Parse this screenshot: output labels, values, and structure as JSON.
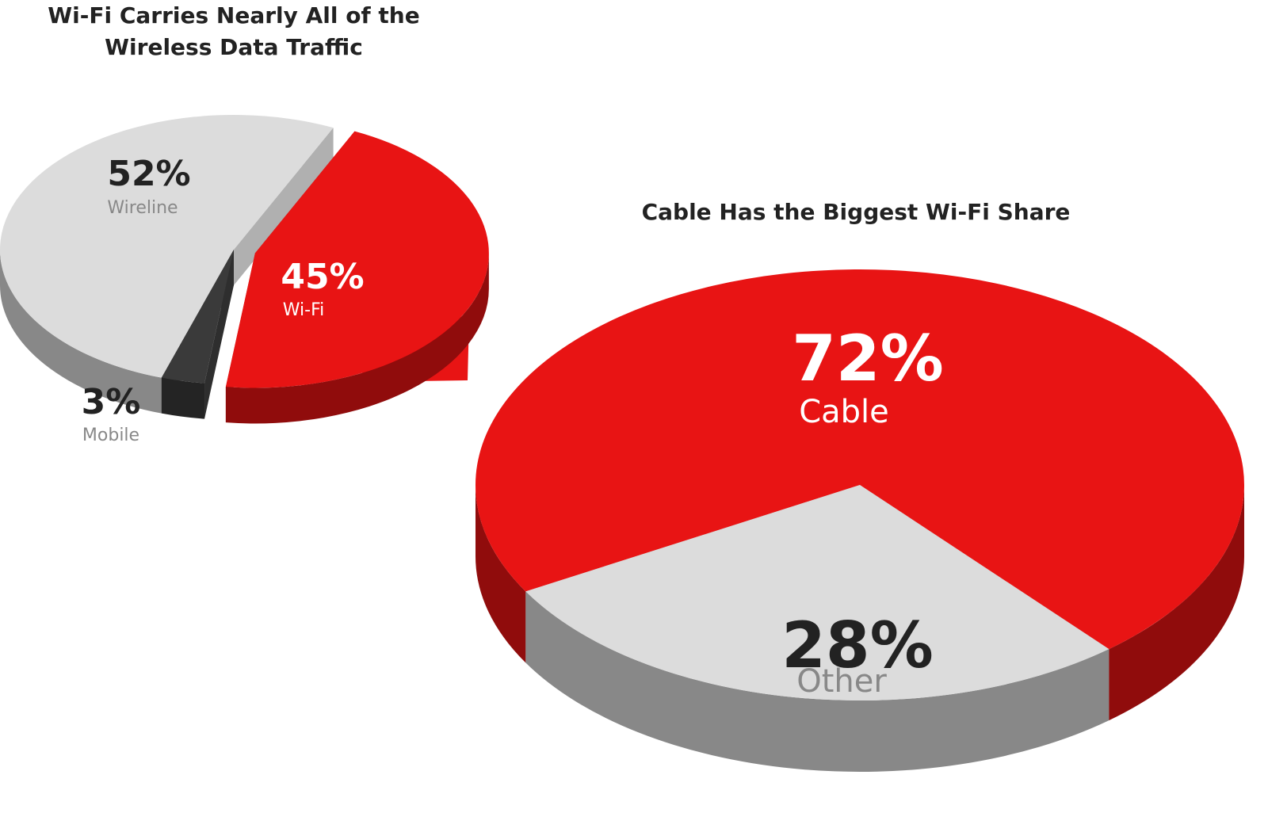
{
  "chart_data": [
    {
      "type": "pie",
      "title": "Wi-Fi Carries Nearly All of the Wireless Data Traffic",
      "categories": [
        "Wireline",
        "Wi-Fi",
        "Mobile"
      ],
      "values": [
        52,
        45,
        3
      ],
      "value_labels": [
        "52%",
        "45%",
        "3%"
      ],
      "colors": [
        "#dcdcdc",
        "#e81414",
        "#3a3a3a"
      ]
    },
    {
      "type": "pie",
      "title": "Cable Has the Biggest Wi-Fi Share",
      "categories": [
        "Cable",
        "Other"
      ],
      "values": [
        72,
        28
      ],
      "value_labels": [
        "72%",
        "28%"
      ],
      "colors": [
        "#e81414",
        "#dcdcdc"
      ]
    }
  ]
}
